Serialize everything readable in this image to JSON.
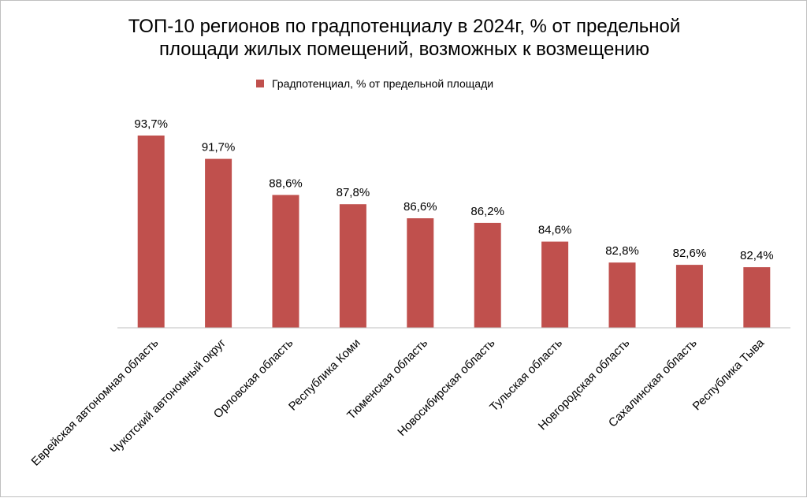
{
  "chart_data": {
    "type": "bar",
    "title_lines": [
      "ТОП-10 регионов по градпотенциалу в 2024г, % от предельной",
      "площади жилых помещений, возможных к возмещению"
    ],
    "legend": [
      "Градпотенциал,  % от предельной площади"
    ],
    "legend_position": "top",
    "series": [
      {
        "name": "Градпотенциал,  % от предельной площади",
        "color": "#C0504D",
        "values": [
          93.7,
          91.7,
          88.6,
          87.8,
          86.6,
          86.2,
          84.6,
          82.8,
          82.6,
          82.4
        ]
      }
    ],
    "categories": [
      "Еврейская автономная область",
      "Чукотский автономный округ",
      "Орловская область",
      "Республика Коми",
      "Тюменская область",
      "Новосибирская область",
      "Тульская область",
      "Новгородская область",
      "Сахалинская  область",
      "Республика Тыва"
    ],
    "data_labels": [
      "93,7%",
      "91,7%",
      "88,6%",
      "87,8%",
      "86,6%",
      "86,2%",
      "84,6%",
      "82,8%",
      "82,6%",
      "82,4%"
    ],
    "ylim": [
      77.2,
      93.7
    ],
    "xlabel": "",
    "ylabel": "",
    "grid": false
  }
}
